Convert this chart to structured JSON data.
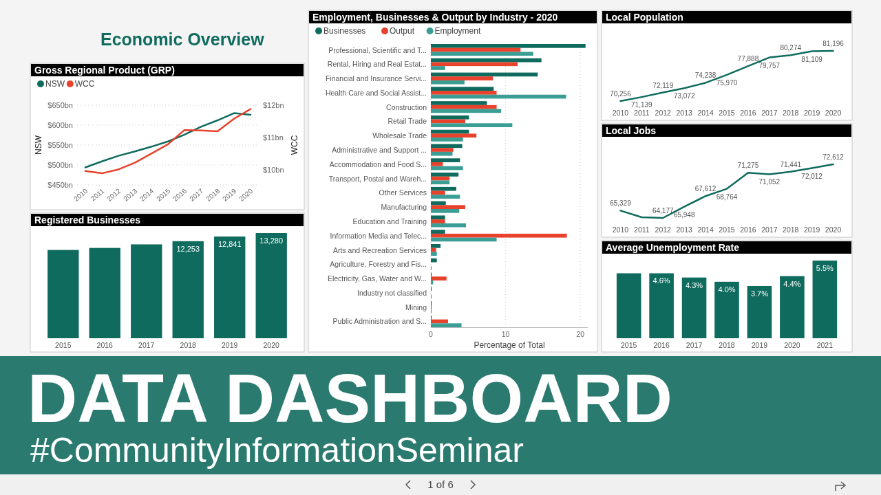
{
  "chart_data": [
    {
      "type": "other",
      "title": "Economic Overview",
      "annotations": [
        "DATA DASHBOARD",
        "#CommunityInformationSeminar",
        "1 of 6"
      ]
    },
    {
      "type": "line",
      "title": "Gross Regional Product (GRP)",
      "categories": [
        "2010",
        "2011",
        "2012",
        "2013",
        "2014",
        "2015",
        "2016",
        "2017",
        "2018",
        "2019",
        "2020"
      ],
      "ylabel": "NSW",
      "y2label": "WCC",
      "ylim": [
        450,
        650
      ],
      "yticks": [
        {
          "value": 450,
          "label": "$450bn"
        },
        {
          "value": 500,
          "label": "$500bn"
        },
        {
          "value": 550,
          "label": "$550bn"
        },
        {
          "value": 600,
          "label": "$600bn"
        },
        {
          "value": 650,
          "label": "$650bn"
        }
      ],
      "y2lim": [
        9.53,
        12
      ],
      "y2ticks": [
        {
          "value": 10,
          "label": "$10bn"
        },
        {
          "value": 11,
          "label": "$11bn"
        },
        {
          "value": 12,
          "label": "$12bn"
        }
      ],
      "grid": "y",
      "legend": "top left",
      "series": [
        {
          "name": "NSW",
          "color": "#0f6b5e",
          "values": [
            494,
            509,
            523,
            534,
            546,
            559,
            576,
            596,
            612,
            630,
            626
          ]
        },
        {
          "name": "WCC",
          "color": "#e8412c",
          "axis": "y2",
          "values": [
            9.96,
            9.89,
            10.01,
            10.22,
            10.5,
            10.79,
            11.23,
            11.22,
            11.19,
            11.58,
            11.88
          ]
        }
      ]
    },
    {
      "type": "bar",
      "title": "Registered Businesses",
      "categories": [
        "2015",
        "2016",
        "2017",
        "2018",
        "2019",
        "2020"
      ],
      "values": [
        11148,
        11403,
        11852,
        12253,
        12841,
        13280
      ],
      "value_labels": [
        null,
        null,
        null,
        "12,253",
        "12,841",
        "13,280"
      ],
      "color": "#0f6b5e",
      "tick_labels": "x"
    },
    {
      "type": "bar",
      "orientation": "horizontal",
      "title": "Employment, Businesses & Output by Industry - 2020",
      "xlabel": "Percentage of Total",
      "categories": [
        "Professional, Scientific and T...",
        "Rental, Hiring and Real Estat...",
        "Financial and Insurance Servi...",
        "Health Care and Social Assist...",
        "Construction",
        "Retail Trade",
        "Wholesale Trade",
        "Administrative and Support ...",
        "Accommodation and Food S...",
        "Transport, Postal and Wareh...",
        "Other Services",
        "Manufacturing",
        "Education and Training",
        "Information Media and Telec...",
        "Arts and Recreation Services",
        "Agriculture, Forestry and Fis...",
        "Electricity, Gas, Water and W...",
        "Industry not classified",
        "Mining",
        "Public Administration and S..."
      ],
      "xlim": [
        0,
        21
      ],
      "xticks": [
        0,
        10,
        20
      ],
      "grid": "x",
      "legend": "top left",
      "series": [
        {
          "name": "Businesses",
          "color": "#0f6b5e",
          "values": [
            20.7,
            14.8,
            14.3,
            8.4,
            7.5,
            5.1,
            5.1,
            4.2,
            3.9,
            3.7,
            3.4,
            2.0,
            1.9,
            1.9,
            1.3,
            0.8,
            0.1,
            0.1,
            0.1,
            0.1
          ]
        },
        {
          "name": "Output",
          "color": "#e8412c",
          "values": [
            12.0,
            11.6,
            8.3,
            8.8,
            8.8,
            4.6,
            6.1,
            3.0,
            1.6,
            2.5,
            1.9,
            4.6,
            1.9,
            18.2,
            0.7,
            0.0,
            2.1,
            0.0,
            0.1,
            2.3
          ]
        },
        {
          "name": "Employment",
          "color": "#3a9e95",
          "values": [
            13.7,
            1.9,
            4.5,
            18.1,
            9.4,
            10.9,
            4.3,
            2.9,
            4.3,
            2.5,
            3.9,
            3.8,
            4.7,
            8.8,
            0.8,
            0.1,
            0.3,
            0.1,
            0.1,
            4.1
          ]
        }
      ]
    },
    {
      "type": "line",
      "title": "Local Population",
      "categories": [
        "2010",
        "2011",
        "2012",
        "2013",
        "2014",
        "2015",
        "2016",
        "2017",
        "2018",
        "2019",
        "2020"
      ],
      "values": [
        70256,
        71139,
        72119,
        73072,
        74238,
        75970,
        77888,
        79757,
        80274,
        81109,
        81196
      ],
      "value_labels": [
        "70,256",
        "71,139",
        "72,119",
        "73,072",
        "74,238",
        "75,970",
        "77,888",
        "79,757",
        "80,274",
        "81,109",
        "81,196"
      ],
      "color": "#0f6b5e",
      "tick_labels": "x"
    },
    {
      "type": "line",
      "title": "Local Jobs",
      "categories": [
        "2010",
        "2011",
        "2012",
        "2013",
        "2014",
        "2015",
        "2016",
        "2017",
        "2018",
        "2019",
        "2020"
      ],
      "values": [
        65329,
        64280,
        64177,
        65948,
        67612,
        68764,
        71275,
        71052,
        71441,
        72012,
        72612
      ],
      "value_labels": [
        "65,329",
        null,
        "64,177",
        "65,948",
        "67,612",
        "68,764",
        "71,275",
        "71,052",
        "71,441",
        "72,012",
        "72,612"
      ],
      "color": "#0f6b5e",
      "tick_labels": "x"
    },
    {
      "type": "bar",
      "title": "Average Unemployment Rate",
      "categories": [
        "2015",
        "2016",
        "2017",
        "2018",
        "2019",
        "2020",
        "2021"
      ],
      "values": [
        4.6,
        4.6,
        4.3,
        4.0,
        3.7,
        4.4,
        5.5
      ],
      "value_labels": [
        null,
        "4.6%",
        "4.3%",
        "4.0%",
        "3.7%",
        "4.4%",
        "5.5%"
      ],
      "color": "#0f6b5e",
      "tick_labels": "x"
    }
  ]
}
